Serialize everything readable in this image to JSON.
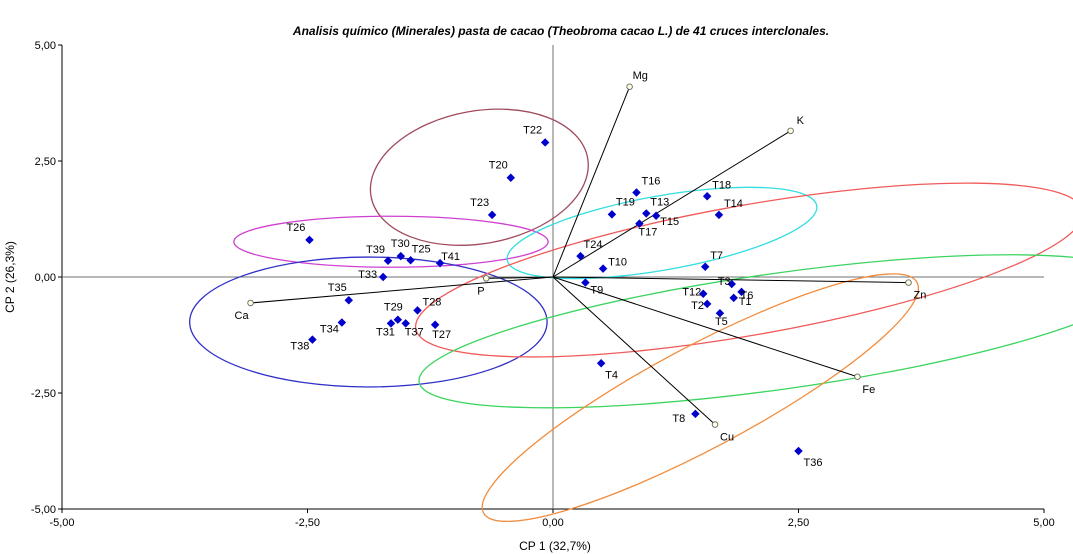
{
  "chart_data": {
    "type": "scatter",
    "subtype": "biplot",
    "title": "Analisis químico (Minerales) pasta de cacao (Theobroma cacao L.) de 41 cruces interclonales.",
    "xlabel": "CP 1 (32,7%)",
    "ylabel": "CP 2 (26,3%)",
    "xlim": [
      -5,
      5
    ],
    "ylim": [
      -5,
      5
    ],
    "xticks": [
      "-5,00",
      "-2,50",
      "0,00",
      "2,50",
      "5,00"
    ],
    "yticks": [
      "5,00",
      "2,50",
      "0,00",
      "-2,50",
      "-5,00"
    ],
    "observations": [
      {
        "name": "T22",
        "x": -0.08,
        "y": 2.9
      },
      {
        "name": "T20",
        "x": -0.43,
        "y": 2.14
      },
      {
        "name": "T23",
        "x": -0.62,
        "y": 1.34
      },
      {
        "name": "T26",
        "x": -2.48,
        "y": 0.8
      },
      {
        "name": "T30",
        "x": -1.55,
        "y": 0.45
      },
      {
        "name": "T39",
        "x": -1.68,
        "y": 0.35
      },
      {
        "name": "T25",
        "x": -1.45,
        "y": 0.36
      },
      {
        "name": "T41",
        "x": -1.15,
        "y": 0.3
      },
      {
        "name": "T33",
        "x": -1.73,
        "y": 0.0
      },
      {
        "name": "T35",
        "x": -2.08,
        "y": -0.5
      },
      {
        "name": "T34",
        "x": -2.15,
        "y": -0.98
      },
      {
        "name": "T38",
        "x": -2.45,
        "y": -1.35
      },
      {
        "name": "T29",
        "x": -1.58,
        "y": -0.92
      },
      {
        "name": "T31",
        "x": -1.65,
        "y": -1.0
      },
      {
        "name": "T37",
        "x": -1.5,
        "y": -1.0
      },
      {
        "name": "T28",
        "x": -1.38,
        "y": -0.72
      },
      {
        "name": "T27",
        "x": -1.2,
        "y": -1.03
      },
      {
        "name": "T16",
        "x": 0.85,
        "y": 1.82
      },
      {
        "name": "T18",
        "x": 1.57,
        "y": 1.74
      },
      {
        "name": "T19",
        "x": 0.6,
        "y": 1.35
      },
      {
        "name": "T13",
        "x": 0.95,
        "y": 1.37
      },
      {
        "name": "T14",
        "x": 1.69,
        "y": 1.34
      },
      {
        "name": "T15",
        "x": 1.05,
        "y": 1.32
      },
      {
        "name": "T17",
        "x": 0.88,
        "y": 1.15
      },
      {
        "name": "T24",
        "x": 0.28,
        "y": 0.45
      },
      {
        "name": "T10",
        "x": 0.51,
        "y": 0.18
      },
      {
        "name": "T7",
        "x": 1.55,
        "y": 0.22
      },
      {
        "name": "T9",
        "x": 0.33,
        "y": -0.12
      },
      {
        "name": "T12",
        "x": 1.53,
        "y": -0.36
      },
      {
        "name": "T3",
        "x": 1.82,
        "y": -0.15
      },
      {
        "name": "T6",
        "x": 1.92,
        "y": -0.32
      },
      {
        "name": "T2",
        "x": 1.57,
        "y": -0.58
      },
      {
        "name": "T1",
        "x": 1.84,
        "y": -0.45
      },
      {
        "name": "T5",
        "x": 1.7,
        "y": -0.78
      },
      {
        "name": "T4",
        "x": 0.49,
        "y": -1.86
      },
      {
        "name": "T8",
        "x": 1.45,
        "y": -2.95
      },
      {
        "name": "T36",
        "x": 2.5,
        "y": -3.75
      }
    ],
    "variables": [
      {
        "name": "Mg",
        "x": 0.78,
        "y": 4.1
      },
      {
        "name": "K",
        "x": 2.42,
        "y": 3.15
      },
      {
        "name": "Zn",
        "x": 3.62,
        "y": -0.12
      },
      {
        "name": "Fe",
        "x": 3.1,
        "y": -2.15
      },
      {
        "name": "Cu",
        "x": 1.65,
        "y": -3.18
      },
      {
        "name": "Ca",
        "x": -3.08,
        "y": -0.56
      },
      {
        "name": "P",
        "x": -0.68,
        "y": -0.03
      }
    ],
    "groups": [
      {
        "name": "group-T20-T22-T23",
        "color": "#a04a5c",
        "cx": -0.75,
        "cy": 2.15,
        "rx": 1.12,
        "ry": 1.43,
        "angle_deg": -10
      },
      {
        "name": "group-T25-T26-T30-T39-T41",
        "color": "#d040d0",
        "cx": -1.65,
        "cy": 0.76,
        "rx": 1.6,
        "ry": 0.55,
        "angle_deg": 0
      },
      {
        "name": "group-T27-T38",
        "color": "#3030c8",
        "cx": -1.88,
        "cy": -0.97,
        "rx": 1.82,
        "ry": 1.4,
        "angle_deg": 0
      },
      {
        "name": "group-T13-T19-T24",
        "color": "#33dde0",
        "cx": 1.11,
        "cy": 0.95,
        "rx": 1.6,
        "ry": 0.8,
        "angle_deg": -10
      },
      {
        "name": "group-T1-T14",
        "color": "#f05a5a",
        "cx": 2.0,
        "cy": 0.15,
        "rx": 3.45,
        "ry": 1.4,
        "angle_deg": -10
      },
      {
        "name": "group-T1-T9",
        "color": "#3cd460",
        "cx": 2.3,
        "cy": -1.17,
        "rx": 3.7,
        "ry": 1.25,
        "angle_deg": -8
      },
      {
        "name": "group-T4-T8-T36",
        "color": "#f28c3c",
        "cx": 1.5,
        "cy": -2.6,
        "rx": 2.5,
        "ry": 1.1,
        "angle_deg": -28
      }
    ]
  }
}
